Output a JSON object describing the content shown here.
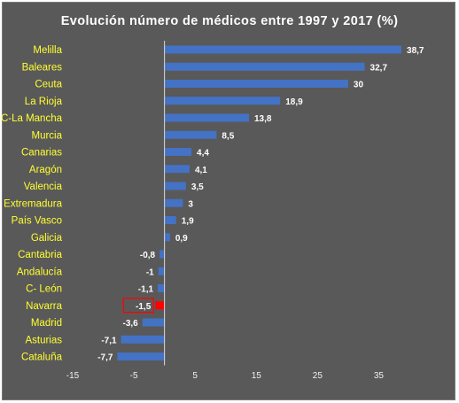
{
  "chart_data": {
    "type": "bar",
    "orientation": "horizontal",
    "title": "Evolución número de médicos entre 1997 y 2017 (%)",
    "xlabel": "",
    "ylabel": "",
    "categories": [
      "Melilla",
      "Baleares",
      "Ceuta",
      "La Rioja",
      "C-La Mancha",
      "Murcia",
      "Canarias",
      "Aragón",
      "Valencia",
      "Extremadura",
      "País Vasco",
      "Galicia",
      "Cantabria",
      "Andalucía",
      "C- León",
      "Navarra",
      "Madrid",
      "Asturias",
      "Cataluña"
    ],
    "values": [
      38.7,
      32.7,
      30,
      18.9,
      13.8,
      8.5,
      4.4,
      4.1,
      3.5,
      3,
      1.9,
      0.9,
      -0.8,
      -1,
      -1.1,
      -1.5,
      -3.6,
      -7.1,
      -7.7
    ],
    "value_labels": [
      "38,7",
      "32,7",
      "30",
      "18,9",
      "13,8",
      "8,5",
      "4,4",
      "4,1",
      "3,5",
      "3",
      "1,9",
      "0,9",
      "-0,8",
      "-1",
      "-1,1",
      "-1,5",
      "-3,6",
      "-7,1",
      "-7,7"
    ],
    "xlim": [
      -15,
      40
    ],
    "xticks": [
      -15,
      -5,
      5,
      15,
      25,
      35
    ],
    "xtick_labels": [
      "-15",
      "-5",
      "5",
      "15",
      "25",
      "35"
    ],
    "highlight": {
      "category": "Navarra",
      "color": "#ff0000"
    },
    "grid": false,
    "legend": "none",
    "colors": {
      "background": "#595959",
      "bar": "#4472c4",
      "highlight": "#ff0000",
      "category_text": "#ffff33",
      "label_text": "#ffffff"
    }
  }
}
